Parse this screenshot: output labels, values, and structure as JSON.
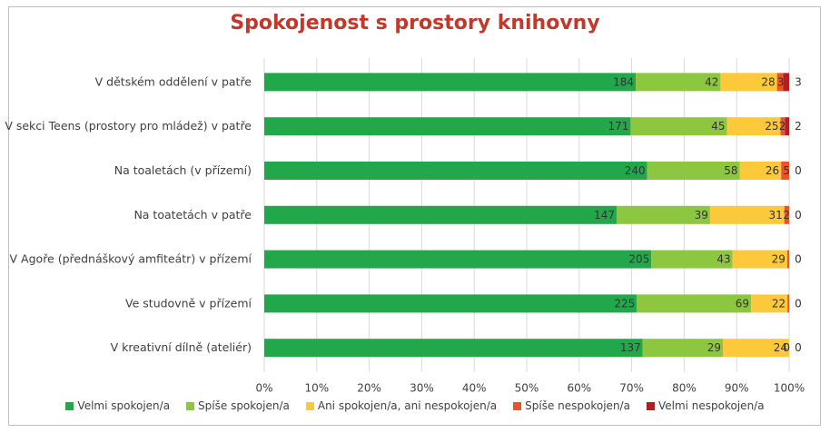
{
  "chart_data": {
    "type": "bar",
    "orientation": "horizontal",
    "stacked": "percent",
    "title": "Spokojenost s prostory knihovny",
    "categories": [
      "V dětském oddělení v patře",
      "V sekci Teens (prostory pro mládež) v patře",
      "Na toaletách (v přízemí)",
      "Na toatetách v patře",
      "V Agoře (přednáškový amfiteátr) v přízemí",
      "Ve studovně v přízemí",
      "V kreativní dílně (ateliér)"
    ],
    "series": [
      {
        "name": "Velmi spokojen/a",
        "color": "#22a84a",
        "values": [
          184,
          171,
          240,
          147,
          205,
          225,
          137
        ]
      },
      {
        "name": "Spíše spokojen/a",
        "color": "#8dc63f",
        "values": [
          42,
          45,
          58,
          39,
          43,
          69,
          29
        ]
      },
      {
        "name": "Ani spokojen/a, ani nespokojen/a",
        "color": "#fcc93a",
        "values": [
          28,
          25,
          26,
          31,
          29,
          22,
          24
        ]
      },
      {
        "name": "Spíše nespokojen/a",
        "color": "#e8552a",
        "values": [
          3,
          2,
          5,
          2,
          1,
          1,
          0
        ]
      },
      {
        "name": "Velmi nespokojen/a",
        "color": "#b41e1e",
        "values": [
          3,
          2,
          0,
          0,
          0,
          0,
          0
        ]
      }
    ],
    "bar_labels": [
      [
        "184",
        "42",
        "28",
        "3",
        "3"
      ],
      [
        "171",
        "45",
        "25",
        "2",
        "2"
      ],
      [
        "240",
        "58",
        "26",
        "5",
        "0"
      ],
      [
        "147",
        "39",
        "31",
        "2",
        "0"
      ],
      [
        "205",
        "43",
        "29",
        "",
        "0"
      ],
      [
        "225",
        "69",
        "22",
        "",
        "0"
      ],
      [
        "137",
        "29",
        "24",
        "0",
        "0"
      ]
    ],
    "xaxis_ticks": [
      "0%",
      "10%",
      "20%",
      "30%",
      "40%",
      "50%",
      "60%",
      "70%",
      "80%",
      "90%",
      "100%"
    ],
    "xlim": [
      0,
      1
    ],
    "grid": "vertical",
    "legend": "bottom"
  }
}
